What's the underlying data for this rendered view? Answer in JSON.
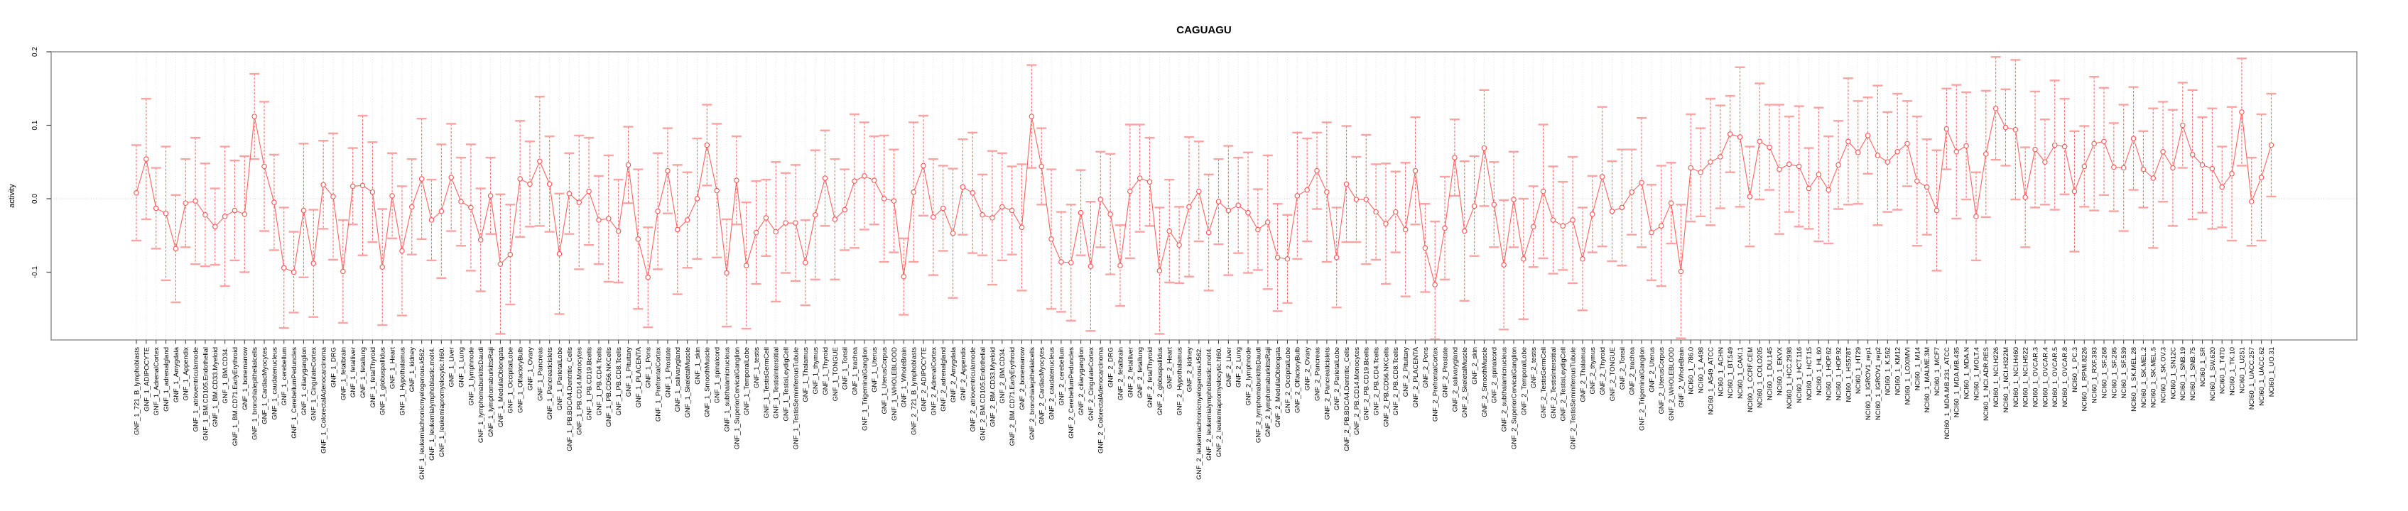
{
  "title": "CAGUAGU",
  "y_axis": {
    "label": "activity",
    "ticks": [
      "0.2",
      "0.1",
      "0.0",
      "-0.1"
    ],
    "tick_values": [
      0.2,
      0.1,
      0.0,
      -0.1
    ]
  },
  "colors": {
    "series_line": "#ff6262",
    "marker_stroke": "#ff5252",
    "error_cap": "#f9a3a3",
    "error_stem": "#ff6b6b",
    "gridline": "#d9d9d9",
    "zero_line": "#c8c8c8",
    "frame": "#999999",
    "tick": "#444444",
    "text": "#000000",
    "background": "#ffffff"
  },
  "chart_data": {
    "type": "line",
    "subtype": "points-with-error-bars",
    "title": "CAGUAGU",
    "xlabel": "",
    "ylabel": "activity",
    "ylim": [
      -0.192,
      0.2
    ],
    "y_ticks": [
      0.2,
      0.1,
      0.0,
      -0.1
    ],
    "grid": "dotted vertical gridline at every category; dotted horizontal line at y=0",
    "legend": "none",
    "marker": "open-circle",
    "series_name": "activity",
    "categories": [
      "GNF_1_721_B_lymphoblasts",
      "GNF_1_ADIPOCYTE",
      "GNF_1_AdrenalCortex",
      "GNF_1_adrenalgland",
      "GNF_1_Amygdala",
      "GNF_1_Appendix",
      "GNF_1_atrioventricularnode",
      "GNF_1_BM.CD105.Endothelial",
      "GNF_1_BM.CD33.Myeloid",
      "GNF_1_BM.CD34.",
      "GNF_1_BM.CD71.EarlyErythroid",
      "GNF_1_bonemarrow",
      "GNF_1_bronchialepithelialcells",
      "GNF_1_CardiacMyocytes",
      "GNF_1_caudatenucleus",
      "GNF_1_cerebellum",
      "GNF_1_CerebellumPeduncles",
      "GNF_1_ciliaryganglion",
      "GNF_1_CingulateCortex",
      "GNF_1_ColorectalAdenocarcinoma",
      "GNF_1_DRG",
      "GNF_1_fetalbrain",
      "GNF_1_fetalliver",
      "GNF_1_fetallung",
      "GNF_1_fetalThyroid",
      "GNF_1_globuspallidus",
      "GNF_1_Heart",
      "GNF_1_Hypothalamus",
      "GNF_1_kidney",
      "GNF_1_leukemiachronicmyelogenous.k562.",
      "GNF_1_leukemialymphoblastic.molt4.",
      "GNF_1_leukemiapromyelocytic.hl60.",
      "GNF_1_Liver",
      "GNF_1_Lung",
      "GNF_1_lymphnode",
      "GNF_1_lymphomaburkittsDaudi",
      "GNF_1_lymphomaburkittsRaji",
      "GNF_1_MedullaOblongata",
      "GNF_1_OccipitalLobe",
      "GNF_1_OlfactoryBulb",
      "GNF_1_Ovary",
      "GNF_1_Pancreas",
      "GNF_1_Pancreaticislets",
      "GNF_1_ParietalLobe",
      "GNF_1_PB.BDCA4.Dentritic_Cells",
      "GNF_1_PB.CD14.Monocytes",
      "GNF_1_PB.CD19.Bcells",
      "GNF_1_PB.CD4.Tcells",
      "GNF_1_PB.CD56.NKCells",
      "GNF_1_PB.CD8.Tcells",
      "GNF_1_Pituitary",
      "GNF_1_PLACENTA",
      "GNF_1_Pons",
      "GNF_1_PrefrontalCortex",
      "GNF_1_Prostate",
      "GNF_1_salivarygland",
      "GNF_1_SkeletalMuscle",
      "GNF_1_skin",
      "GNF_1_SmoothMuscle",
      "GNF_1_spinalcord",
      "GNF_1_subthalamicnucleus",
      "GNF_1_SuperiorCervicalGanglion",
      "GNF_1_TemporalLobe",
      "GNF_1_testis",
      "GNF_1_TestisGermCell",
      "GNF_1_TestisInterstitial",
      "GNF_1_TestisLeydigCell",
      "GNF_1_TestisSeminiferousTubule",
      "GNF_1_Thalamus",
      "GNF_1_thymus",
      "GNF_1_Thyroid",
      "GNF_1_TONGUE",
      "GNF_1_Tonsil",
      "GNF_1_trachea",
      "GNF_1_TrigeminalGanglion",
      "GNF_1_Uterus",
      "GNF_1_UterusCorpus",
      "GNF_1_WHOLEBLOOD",
      "GNF_1_WholeBrain",
      "GNF_2_721_B_lymphoblasts",
      "GNF_2_ADIPOCYTE",
      "GNF_2_AdrenalCortex",
      "GNF_2_adrenalgland",
      "GNF_2_Amygdala",
      "GNF_2_Appendix",
      "GNF_2_atrioventricularnode",
      "GNF_2_BM.CD105.Endothelial",
      "GNF_2_BM.CD33.Myeloid",
      "GNF_2_BM.CD34.",
      "GNF_2_BM.CD71.EarlyErythroid",
      "GNF_2_bonemarrow",
      "GNF_2_bronchialepithelialcells",
      "GNF_2_CardiacMyocytes",
      "GNF_2_caudatenucleus",
      "GNF_2_cerebellum",
      "GNF_2_CerebellumPeduncles",
      "GNF_2_ciliaryganglion",
      "GNF_2_CingulateCortex",
      "GNF_2_ColorectalAdenocarcinoma",
      "GNF_2_DRG",
      "GNF_2_fetalbrain",
      "GNF_2_fetalliver",
      "GNF_2_fetallung",
      "GNF_2_fetalThyroid",
      "GNF_2_globuspallidus",
      "GNF_2_Heart",
      "GNF_2_Hypothalamus",
      "GNF_2_kidney",
      "GNF_2_leukemiachronicmyelogenous.k562.",
      "GNF_2_leukemialymphoblastic.molt4.",
      "GNF_2_leukemiapromyelocytic.hl60.",
      "GNF_2_Liver",
      "GNF_2_Lung",
      "GNF_2_lymphnode",
      "GNF_2_lymphomaburkittsDaudi",
      "GNF_2_lymphomaburkittsRaji",
      "GNF_2_MedullaOblongata",
      "GNF_2_OccipitalLobe",
      "GNF_2_OlfactoryBulb",
      "GNF_2_Ovary",
      "GNF_2_Pancreas",
      "GNF_2_Pancreaticislets",
      "GNF_2_ParietalLobe",
      "GNF_2_PB.BDCA4.Dentritic_Cells",
      "GNF_2_PB.CD14.Monocytes",
      "GNF_2_PB.CD19.Bcells",
      "GNF_2_PB.CD4.Tcells",
      "GNF_2_PB.CD56.NKCells",
      "GNF_2_PB.CD8.Tcells",
      "GNF_2_Pituitary",
      "GNF_2_PLACENTA",
      "GNF_2_Pons",
      "GNF_2_PrefrontalCortex",
      "GNF_2_Prostate",
      "GNF_2_salivarygland",
      "GNF_2_SkeletalMuscle",
      "GNF_2_skin",
      "GNF_2_SmoothMuscle",
      "GNF_2_spinalcord",
      "GNF_2_subthalamicnucleus",
      "GNF_2_SuperiorCervicalGanglion",
      "GNF_2_TemporalLobe",
      "GNF_2_testis",
      "GNF_2_TestisGermCell",
      "GNF_2_TestisInterstitial",
      "GNF_2_TestisLeydigCell",
      "GNF_2_TestisSeminiferousTubule",
      "GNF_2_Thalamus",
      "GNF_2_thymus",
      "GNF_2_Thyroid",
      "GNF_2_TONGUE",
      "GNF_2_Tonsil",
      "GNF_2_trachea",
      "GNF_2_TrigeminalGanglion",
      "GNF_2_Uterus",
      "GNF_2_UterusCorpus",
      "GNF_2_WHOLEBLOOD",
      "GNF_2_WholeBrain",
      "NCI60_1_786.0",
      "NCI60_1_A498",
      "NCI60_1_A549_ATCC",
      "NCI60_1_ACHN",
      "NCI60_1_BT.549",
      "NCI60_1_CAKI.1",
      "NCI60_1_CCRF.CEM",
      "NCI60_1_COLO205",
      "NCI60_1_DU.145",
      "NCI60_1_EKVX",
      "NCI60_1_HCC.2998",
      "NCI60_1_HCT.116",
      "NCI60_1_HCT.15",
      "NCI60_1_HL.60",
      "NCI60_1_HOP.62",
      "NCI60_1_HOP.92",
      "NCI60_1_HS578T",
      "NCI60_1_HT29",
      "NCI60_1_IGROV1_rep1",
      "NCI60_1_IGROV1_rep2",
      "NCI60_1_K.562",
      "NCI60_1_KM12",
      "NCI60_1_LOXIMVI",
      "NCI60_1_M14",
      "NCI60_1_MALME.3M",
      "NCI60_1_MCF7",
      "NCI60_1_MDA.MB.231_ATCC",
      "NCI60_1_MDA.MB.435",
      "NCI60_1_MDA.N",
      "NCI60_1_MOLT.4",
      "NCI60_1_NCI.ADR.RES",
      "NCI60_1_NCI.H226",
      "NCI60_1_NCI.H322M",
      "NCI60_1_NCI.H460",
      "NCI60_1_NCI.H522",
      "NCI60_1_OVCAR.3",
      "NCI60_1_OVCAR.4",
      "NCI60_1_OVCAR.5",
      "NCI60_1_OVCAR.8",
      "NCI60_1_PC.3",
      "NCI60_1_RPMI.8226",
      "NCI60_1_RXF.393",
      "NCI60_1_SF.268",
      "NCI60_1_SF.295",
      "NCI60_1_SF.539",
      "NCI60_1_SK.MEL.28",
      "NCI60_1_SK.MEL.2",
      "NCI60_1_SK.MEL.5",
      "NCI60_1_SK.OV.3",
      "NCI60_1_SN12C",
      "NCI60_1_SNB.19",
      "NCI60_1_SNB.75",
      "NCI60_1_SR",
      "NCI60_1_SW.620",
      "NCI60_1_T47D",
      "NCI60_1_TK.10",
      "NCI60_1_U251",
      "NCI60_1_UACC.257",
      "NCI60_1_UACC.62",
      "NCI60_1_UO.31"
    ],
    "values": [
      0.008,
      0.054,
      -0.013,
      -0.02,
      -0.068,
      -0.006,
      -0.003,
      -0.022,
      -0.038,
      -0.024,
      -0.016,
      -0.021,
      0.112,
      0.044,
      -0.005,
      -0.094,
      -0.1,
      -0.016,
      -0.088,
      0.019,
      0.003,
      -0.099,
      0.017,
      0.018,
      0.009,
      -0.093,
      0.004,
      -0.071,
      -0.011,
      0.027,
      -0.029,
      -0.017,
      0.029,
      -0.004,
      -0.012,
      -0.056,
      0.004,
      -0.089,
      -0.076,
      0.027,
      0.02,
      0.051,
      0.02,
      -0.075,
      0.007,
      -0.005,
      0.01,
      -0.029,
      -0.027,
      -0.044,
      0.046,
      -0.055,
      -0.107,
      -0.017,
      0.038,
      -0.042,
      -0.029,
      0.0,
      0.073,
      0.011,
      -0.101,
      0.025,
      -0.091,
      -0.046,
      -0.026,
      -0.045,
      -0.033,
      -0.033,
      -0.087,
      -0.022,
      0.028,
      -0.028,
      -0.015,
      0.024,
      0.031,
      0.025,
      0.0,
      -0.003,
      -0.106,
      0.009,
      0.045,
      -0.025,
      -0.013,
      -0.047,
      0.016,
      0.008,
      -0.022,
      -0.026,
      -0.011,
      -0.016,
      -0.039,
      0.112,
      0.044,
      -0.055,
      -0.086,
      -0.087,
      -0.019,
      -0.092,
      -0.001,
      -0.021,
      -0.091,
      0.01,
      0.028,
      0.023,
      -0.098,
      -0.044,
      -0.063,
      -0.011,
      0.01,
      -0.046,
      -0.004,
      -0.016,
      -0.009,
      -0.019,
      -0.042,
      -0.032,
      -0.08,
      -0.082,
      0.004,
      0.012,
      0.038,
      0.009,
      -0.08,
      0.02,
      -0.001,
      -0.001,
      -0.018,
      -0.034,
      -0.018,
      -0.042,
      0.038,
      -0.067,
      -0.117,
      -0.04,
      0.056,
      -0.044,
      -0.01,
      0.069,
      -0.008,
      -0.09,
      -0.001,
      -0.082,
      -0.038,
      0.01,
      -0.029,
      -0.037,
      -0.029,
      -0.082,
      -0.021,
      0.03,
      -0.017,
      -0.012,
      0.009,
      0.022,
      -0.046,
      -0.037,
      -0.006,
      -0.099,
      0.042,
      0.036,
      0.05,
      0.057,
      0.088,
      0.084,
      0.003,
      0.078,
      0.07,
      0.04,
      0.047,
      0.044,
      0.014,
      0.033,
      0.012,
      0.046,
      0.078,
      0.063,
      0.086,
      0.059,
      0.05,
      0.064,
      0.075,
      0.024,
      0.016,
      -0.016,
      0.095,
      0.064,
      0.072,
      -0.024,
      0.061,
      0.123,
      0.097,
      0.094,
      0.002,
      0.067,
      0.05,
      0.073,
      0.071,
      0.01,
      0.044,
      0.075,
      0.078,
      0.043,
      0.042,
      0.082,
      0.04,
      0.028,
      0.064,
      0.042,
      0.1,
      0.06,
      0.046,
      0.041,
      0.016,
      0.034,
      0.118,
      -0.004,
      0.029,
      0.073
    ],
    "errors": [
      0.065,
      0.082,
      0.055,
      0.091,
      0.073,
      0.06,
      0.086,
      0.07,
      0.052,
      0.095,
      0.068,
      0.079,
      0.058,
      0.088,
      0.065,
      0.082,
      0.055,
      0.091,
      0.073,
      0.06,
      0.086,
      0.07,
      0.052,
      0.095,
      0.068,
      0.079,
      0.058,
      0.088,
      0.065,
      0.082,
      0.055,
      0.091,
      0.073,
      0.06,
      0.086,
      0.07,
      0.052,
      0.095,
      0.068,
      0.079,
      0.058,
      0.088,
      0.065,
      0.082,
      0.055,
      0.091,
      0.073,
      0.06,
      0.086,
      0.07,
      0.052,
      0.095,
      0.068,
      0.079,
      0.058,
      0.088,
      0.065,
      0.082,
      0.055,
      0.091,
      0.073,
      0.06,
      0.086,
      0.07,
      0.052,
      0.095,
      0.068,
      0.079,
      0.058,
      0.088,
      0.065,
      0.082,
      0.055,
      0.091,
      0.073,
      0.06,
      0.086,
      0.07,
      0.052,
      0.095,
      0.068,
      0.079,
      0.058,
      0.088,
      0.065,
      0.082,
      0.055,
      0.091,
      0.073,
      0.06,
      0.086,
      0.07,
      0.052,
      0.095,
      0.068,
      0.079,
      0.058,
      0.088,
      0.065,
      0.082,
      0.055,
      0.091,
      0.073,
      0.06,
      0.086,
      0.07,
      0.052,
      0.095,
      0.068,
      0.079,
      0.058,
      0.088,
      0.065,
      0.082,
      0.055,
      0.091,
      0.073,
      0.06,
      0.086,
      0.07,
      0.052,
      0.095,
      0.068,
      0.079,
      0.058,
      0.088,
      0.065,
      0.082,
      0.055,
      0.091,
      0.073,
      0.06,
      0.086,
      0.07,
      0.052,
      0.095,
      0.068,
      0.079,
      0.058,
      0.088,
      0.065,
      0.082,
      0.055,
      0.091,
      0.073,
      0.06,
      0.086,
      0.07,
      0.052,
      0.095,
      0.068,
      0.079,
      0.058,
      0.088,
      0.065,
      0.082,
      0.055,
      0.091,
      0.073,
      0.06,
      0.086,
      0.07,
      0.052,
      0.095,
      0.068,
      0.079,
      0.058,
      0.088,
      0.065,
      0.082,
      0.055,
      0.091,
      0.073,
      0.06,
      0.086,
      0.07,
      0.052,
      0.095,
      0.068,
      0.079,
      0.058,
      0.088,
      0.065,
      0.082,
      0.055,
      0.091,
      0.073,
      0.06,
      0.086,
      0.07,
      0.052,
      0.095,
      0.068,
      0.079,
      0.058,
      0.088,
      0.065,
      0.082,
      0.055,
      0.091,
      0.073,
      0.06,
      0.086,
      0.07,
      0.052,
      0.095,
      0.068,
      0.079,
      0.058,
      0.088,
      0.065,
      0.082,
      0.055,
      0.091,
      0.073,
      0.06,
      0.086,
      0.07
    ]
  }
}
